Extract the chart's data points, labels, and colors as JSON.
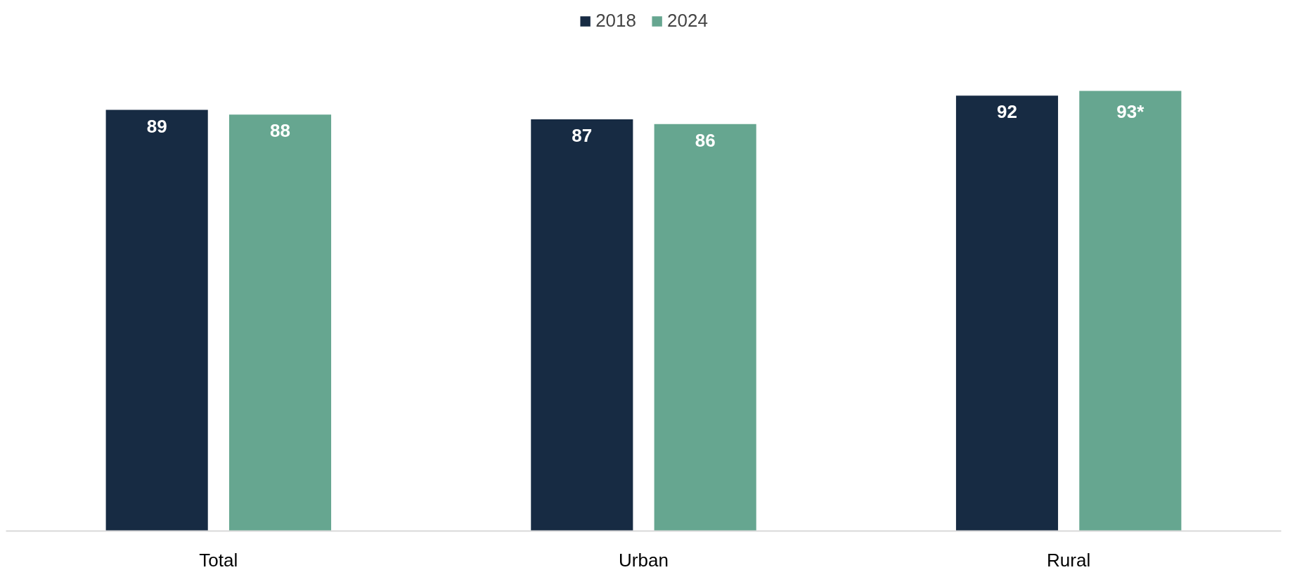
{
  "chart_data": {
    "type": "bar",
    "categories": [
      "Total",
      "Urban",
      "Rural"
    ],
    "series": [
      {
        "name": "2018",
        "color": "#172b43",
        "values": [
          89,
          87,
          92
        ],
        "value_labels": [
          "89",
          "87",
          "92"
        ]
      },
      {
        "name": "2024",
        "color": "#66a690",
        "values": [
          88,
          86,
          93
        ],
        "value_labels": [
          "88",
          "86",
          "93*"
        ]
      }
    ],
    "tick_labels": "x",
    "grid": false,
    "legend": "top"
  }
}
